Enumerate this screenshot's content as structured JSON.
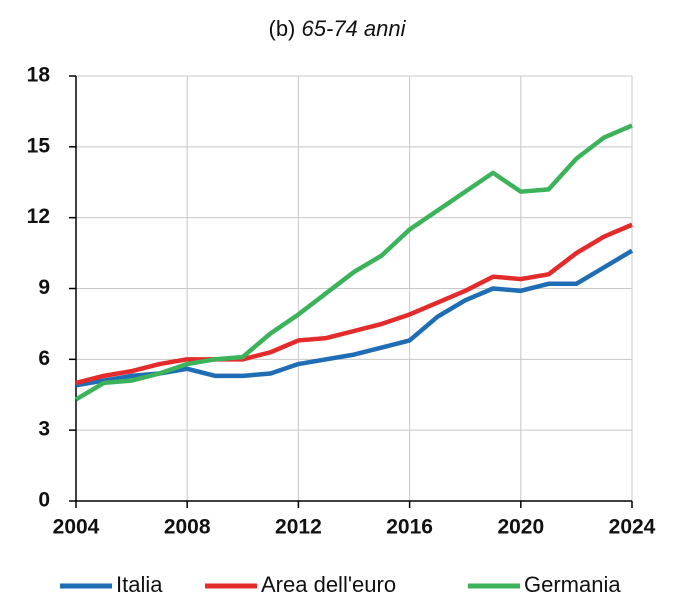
{
  "chart_data": {
    "type": "line",
    "panel_label": "(b)",
    "title": "65-74 anni",
    "x": [
      2004,
      2005,
      2006,
      2007,
      2008,
      2009,
      2010,
      2011,
      2012,
      2013,
      2014,
      2015,
      2016,
      2017,
      2018,
      2019,
      2020,
      2021,
      2022,
      2023,
      2024
    ],
    "series": [
      {
        "name": "Italia",
        "color": "#1f6db5",
        "values": [
          4.9,
          5.1,
          5.3,
          5.4,
          5.6,
          5.3,
          5.3,
          5.4,
          5.8,
          6.0,
          6.2,
          6.5,
          6.8,
          7.8,
          8.5,
          9.0,
          8.9,
          9.2,
          9.2,
          9.9,
          10.6
        ]
      },
      {
        "name": "Area dell'euro",
        "color": "#e32b2b",
        "values": [
          5.0,
          5.3,
          5.5,
          5.8,
          6.0,
          6.0,
          6.0,
          6.3,
          6.8,
          6.9,
          7.2,
          7.5,
          7.9,
          8.4,
          8.9,
          9.5,
          9.4,
          9.6,
          10.5,
          11.2,
          11.7
        ]
      },
      {
        "name": "Germania",
        "color": "#3cb35a",
        "values": [
          4.3,
          5.0,
          5.1,
          5.4,
          5.8,
          6.0,
          6.1,
          7.1,
          7.9,
          8.8,
          9.7,
          10.4,
          11.5,
          12.3,
          13.1,
          13.9,
          13.1,
          13.2,
          14.5,
          15.4,
          15.9
        ]
      }
    ],
    "xlim": [
      2004,
      2024
    ],
    "xticks": [
      2004,
      2008,
      2012,
      2016,
      2020,
      2024
    ],
    "ylim": [
      0,
      18
    ],
    "yticks": [
      0,
      3,
      6,
      9,
      12,
      15,
      18
    ],
    "grid": true,
    "legend": "bottom"
  }
}
